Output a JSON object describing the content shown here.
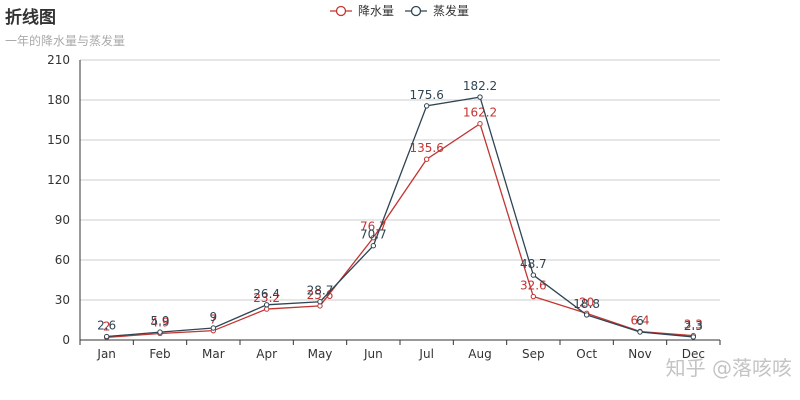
{
  "colors": {
    "series_a": "#c23531",
    "series_b": "#2f4554",
    "grid": "#cccccc",
    "axis": "#333333"
  },
  "watermark": "知乎 @落咳咳",
  "chart_data": {
    "type": "line",
    "title": "折线图",
    "subtitle": "一年的降水量与蒸发量",
    "xlabel": "",
    "ylabel": "",
    "categories": [
      "Jan",
      "Feb",
      "Mar",
      "Apr",
      "May",
      "Jun",
      "Jul",
      "Aug",
      "Sep",
      "Oct",
      "Nov",
      "Dec"
    ],
    "series": [
      {
        "name": "降水量",
        "values": [
          2,
          4.9,
          7,
          23.2,
          25.6,
          76.7,
          135.6,
          162.2,
          32.6,
          20,
          6.4,
          3.3
        ]
      },
      {
        "name": "蒸发量",
        "values": [
          2.6,
          5.9,
          9,
          26.4,
          28.7,
          70.7,
          175.6,
          182.2,
          48.7,
          18.8,
          6,
          2.3
        ]
      }
    ],
    "ylim": [
      0,
      210
    ],
    "yticks": [
      0,
      30,
      60,
      90,
      120,
      150,
      180,
      210
    ],
    "grid": true,
    "legend": "top-center"
  }
}
